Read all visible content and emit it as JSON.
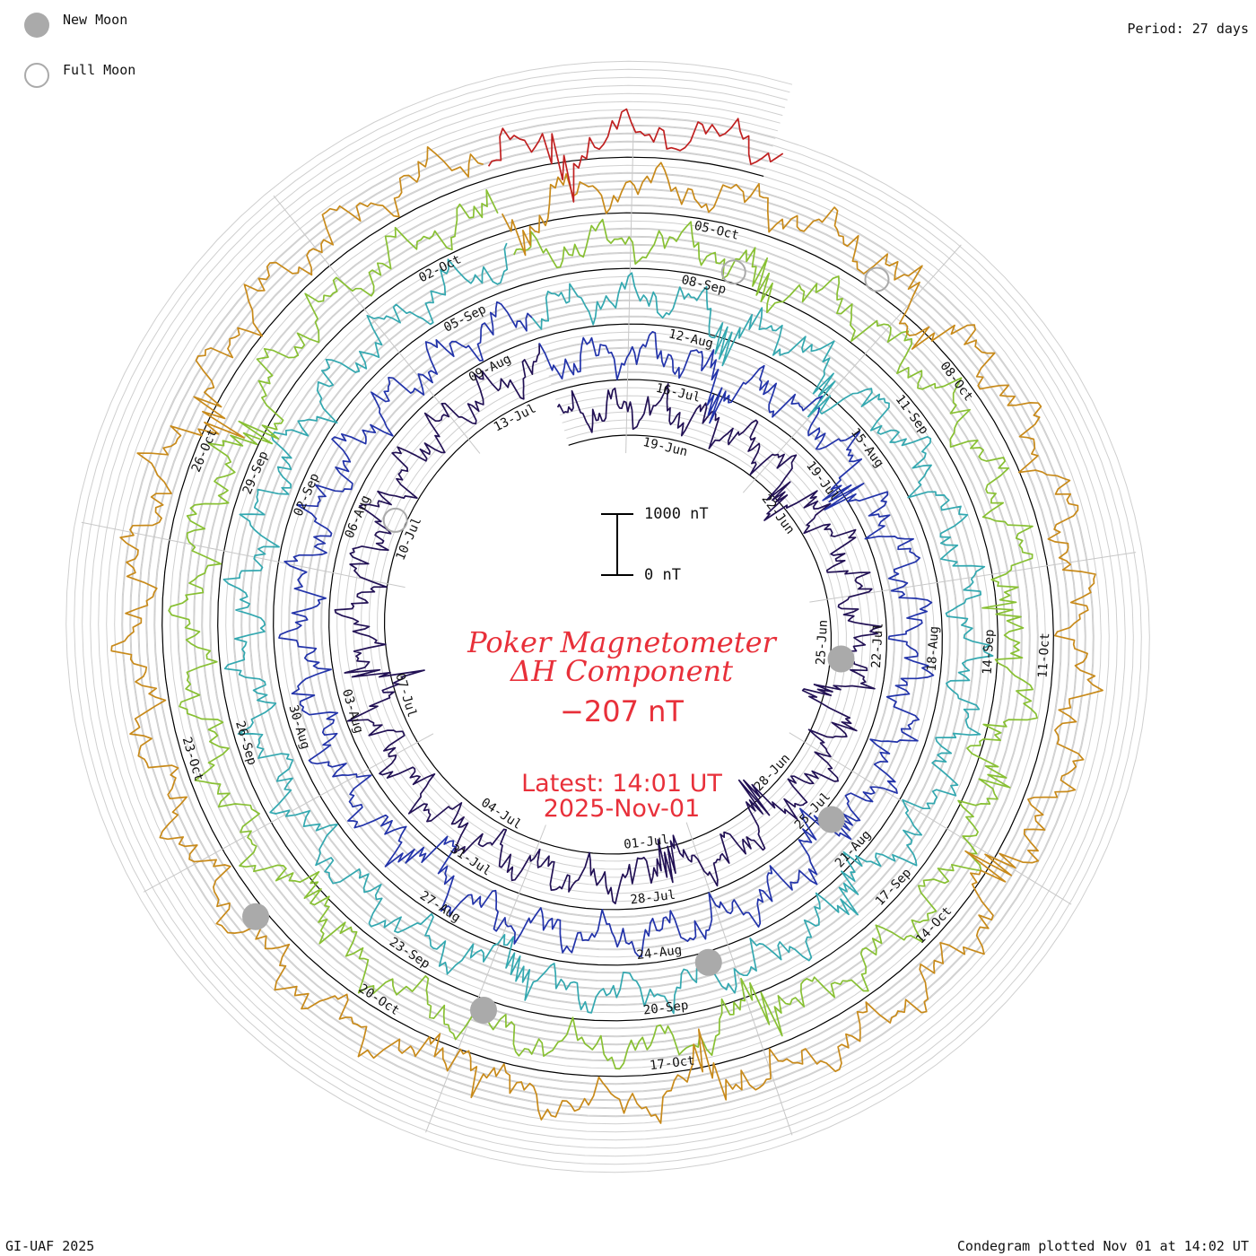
{
  "header": {
    "period_label": "Period: 27 days"
  },
  "legend": {
    "new_moon_label": "New Moon",
    "full_moon_label": "Full Moon",
    "new_moon_color": "#aaaaaa",
    "full_moon_color": "#aaaaaa"
  },
  "title": {
    "line1": "Poker Magnetometer",
    "line2": "ΔH Component",
    "current_value": "−207 nT"
  },
  "latest": {
    "line1": "Latest: 14:01 UT",
    "line2": "2025-Nov-01"
  },
  "scale_bar": {
    "top_label": "1000 nT",
    "bottom_label": "0 nT"
  },
  "footer": {
    "left": "GI-UAF 2025",
    "right": "Condegram plotted Nov 01 at 14:02 UT"
  },
  "chart_data": {
    "type": "line",
    "subtype": "condegram-spiral",
    "period_days": 27,
    "start_date": "2025-06-17",
    "end_datetime": "2025-11-01 14:01",
    "units": "nT",
    "scale_bar_nT": [
      0,
      1000
    ],
    "series": [
      {
        "color": "#221155",
        "date_range": [
          "2025-06-17",
          "2025-07-14"
        ]
      },
      {
        "color": "#2233aa",
        "date_range": [
          "2025-07-14",
          "2025-08-10"
        ]
      },
      {
        "color": "#33a8b0",
        "date_range": [
          "2025-08-10",
          "2025-09-06"
        ]
      },
      {
        "color": "#88c033",
        "date_range": [
          "2025-09-06",
          "2025-10-03"
        ]
      },
      {
        "color": "#c88a1a",
        "date_range": [
          "2025-10-03",
          "2025-10-30"
        ]
      },
      {
        "color": "#c02020",
        "date_range": [
          "2025-10-30",
          "2025-11-01"
        ]
      }
    ],
    "date_labels": [
      {
        "label": "19-Jun",
        "day": 2.2
      },
      {
        "label": "22-Jun",
        "day": 5.2
      },
      {
        "label": "25-Jun",
        "day": 8.2
      },
      {
        "label": "28-Jun",
        "day": 11.2
      },
      {
        "label": "01-Jul",
        "day": 14.2
      },
      {
        "label": "04-Jul",
        "day": 17.2
      },
      {
        "label": "07-Jul",
        "day": 20.2
      },
      {
        "label": "10-Jul",
        "day": 23.2
      },
      {
        "label": "13-Jul",
        "day": 26.2
      },
      {
        "label": "16-Jul",
        "day": 29.2
      },
      {
        "label": "19-Jul",
        "day": 32.2
      },
      {
        "label": "22-Jul",
        "day": 35.2
      },
      {
        "label": "25-Jul",
        "day": 38.2
      },
      {
        "label": "28-Jul",
        "day": 41.2
      },
      {
        "label": "31-Jul",
        "day": 44.2
      },
      {
        "label": "03-Aug",
        "day": 47.2
      },
      {
        "label": "06-Aug",
        "day": 50.2
      },
      {
        "label": "09-Aug",
        "day": 53.2
      },
      {
        "label": "12-Aug",
        "day": 56.2
      },
      {
        "label": "15-Aug",
        "day": 59.2
      },
      {
        "label": "18-Aug",
        "day": 62.2
      },
      {
        "label": "21-Aug",
        "day": 65.2
      },
      {
        "label": "24-Aug",
        "day": 68.2
      },
      {
        "label": "27-Aug",
        "day": 71.2
      },
      {
        "label": "30-Aug",
        "day": 74.2
      },
      {
        "label": "02-Sep",
        "day": 77.2
      },
      {
        "label": "05-Sep",
        "day": 80.2
      },
      {
        "label": "08-Sep",
        "day": 83.2
      },
      {
        "label": "11-Sep",
        "day": 86.2
      },
      {
        "label": "14-Sep",
        "day": 89.2
      },
      {
        "label": "17-Sep",
        "day": 92.2
      },
      {
        "label": "20-Sep",
        "day": 95.2
      },
      {
        "label": "23-Sep",
        "day": 98.2
      },
      {
        "label": "26-Sep",
        "day": 101.2
      },
      {
        "label": "29-Sep",
        "day": 104.2
      },
      {
        "label": "02-Oct",
        "day": 107.2
      },
      {
        "label": "05-Oct",
        "day": 110.2
      },
      {
        "label": "08-Oct",
        "day": 113.2
      },
      {
        "label": "11-Oct",
        "day": 116.2
      },
      {
        "label": "14-Oct",
        "day": 119.2
      },
      {
        "label": "17-Oct",
        "day": 122.2
      },
      {
        "label": "20-Oct",
        "day": 125.2
      },
      {
        "label": "23-Oct",
        "day": 128.2
      },
      {
        "label": "26-Oct",
        "day": 131.2
      }
    ],
    "moon_phases": [
      {
        "type": "new",
        "day": 8.5
      },
      {
        "type": "full",
        "day": 23.4
      },
      {
        "type": "new",
        "day": 38.1
      },
      {
        "type": "new",
        "day": 67.6
      },
      {
        "type": "full",
        "day": 83.5
      },
      {
        "type": "new",
        "day": 97.2
      },
      {
        "type": "full",
        "day": 111.9
      },
      {
        "type": "new",
        "day": 126.6
      }
    ]
  }
}
